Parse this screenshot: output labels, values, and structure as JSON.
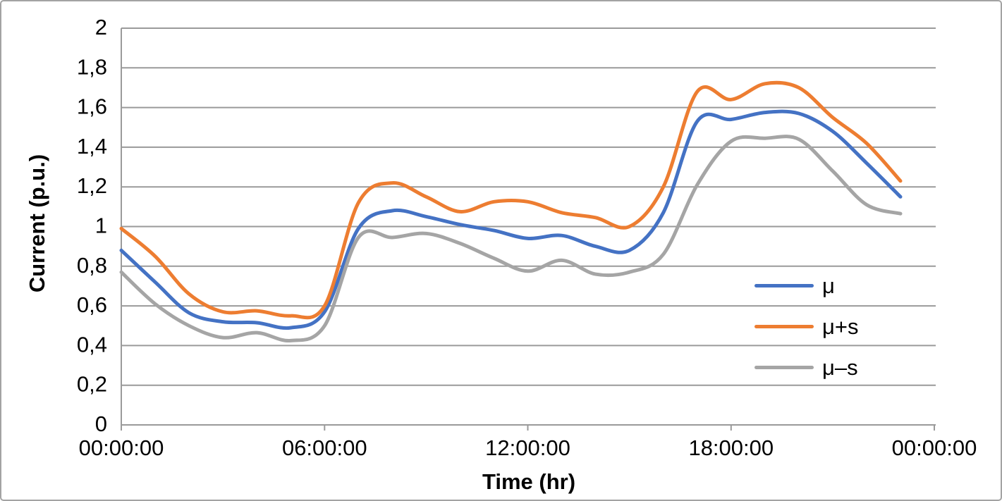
{
  "page": {
    "background": "#ffffff",
    "frame_border_color": "#a3a3a3"
  },
  "chart_data": {
    "type": "line",
    "title": "",
    "xlabel": "Time (hr)",
    "ylabel": "Current (p.u.)",
    "grid": "horizontal-only",
    "smooth_lines": true,
    "markers": false,
    "axis_color": "#9a9a9a",
    "tick_label_color": "#000000",
    "xlim_hours": [
      0,
      24
    ],
    "ylim": [
      0,
      2
    ],
    "x_ticks": {
      "labels": [
        "00:00:00",
        "06:00:00",
        "12:00:00",
        "18:00:00",
        "00:00:00"
      ],
      "hours": [
        0,
        6,
        12,
        18,
        24
      ]
    },
    "y_ticks": {
      "labels": [
        "0",
        "0,2",
        "0,4",
        "0,6",
        "0,8",
        "1",
        "1,2",
        "1,4",
        "1,6",
        "1,8",
        "2"
      ],
      "values": [
        0,
        0.2,
        0.4,
        0.6,
        0.8,
        1,
        1.2,
        1.4,
        1.6,
        1.8,
        2
      ]
    },
    "legend": {
      "position": "middle-right",
      "entries": [
        "μ",
        "μ+s",
        "μ–s"
      ]
    },
    "hours": [
      0,
      1,
      2,
      3,
      4,
      5,
      6,
      7,
      8,
      9,
      10,
      11,
      12,
      13,
      14,
      15,
      16,
      17,
      18,
      19,
      20,
      21,
      22,
      23
    ],
    "series": [
      {
        "key": "mu",
        "name": "μ",
        "color": "#4472C4",
        "values": [
          0.88,
          0.72,
          0.565,
          0.52,
          0.515,
          0.49,
          0.57,
          0.99,
          1.08,
          1.05,
          1.01,
          0.98,
          0.94,
          0.955,
          0.9,
          0.88,
          1.07,
          1.53,
          1.54,
          1.575,
          1.57,
          1.48,
          1.32,
          1.15
        ]
      },
      {
        "key": "mu_plus_s",
        "name": "μ+s",
        "color": "#ED7D31",
        "values": [
          0.99,
          0.85,
          0.66,
          0.57,
          0.575,
          0.55,
          0.6,
          1.12,
          1.22,
          1.15,
          1.075,
          1.125,
          1.125,
          1.07,
          1.045,
          1.0,
          1.2,
          1.68,
          1.64,
          1.72,
          1.7,
          1.55,
          1.42,
          1.23
        ]
      },
      {
        "key": "mu_minus_s",
        "name": "μ–s",
        "color": "#A5A5A5",
        "values": [
          0.77,
          0.61,
          0.5,
          0.44,
          0.465,
          0.425,
          0.5,
          0.945,
          0.945,
          0.965,
          0.915,
          0.84,
          0.775,
          0.83,
          0.76,
          0.77,
          0.86,
          1.21,
          1.43,
          1.445,
          1.44,
          1.28,
          1.11,
          1.065
        ]
      }
    ]
  }
}
